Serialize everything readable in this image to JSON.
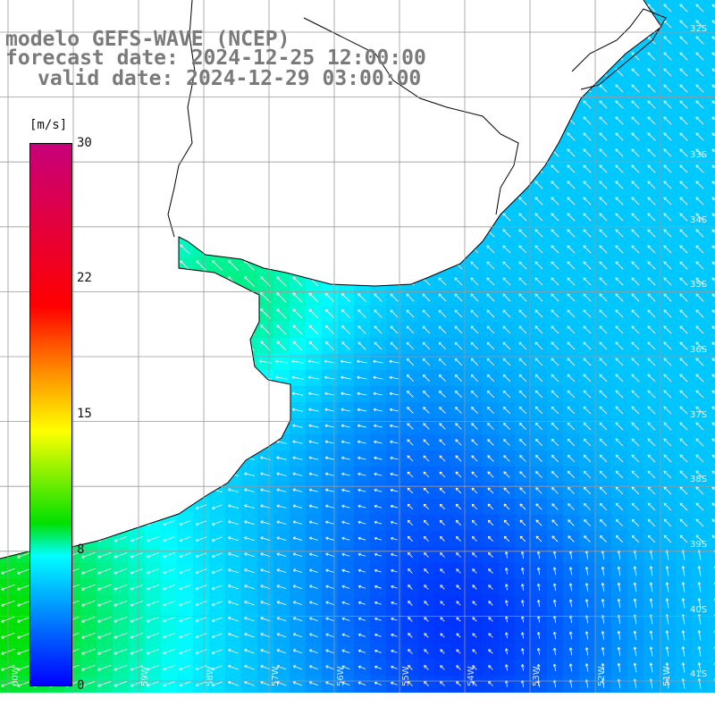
{
  "title": {
    "line1": "modelo GEFS-WAVE (NCEP)",
    "line2": "forecast date: 2024-12-25 12:00:00",
    "line3": "valid date: 2024-12-29 03:00:00"
  },
  "colorbar": {
    "unit": "[m/s]",
    "ticks": [
      "30",
      "22",
      "15",
      "8",
      "0"
    ],
    "tick_values": [
      30,
      22,
      15,
      8,
      0
    ],
    "min": 0,
    "max": 30,
    "colors": [
      "#0000ff",
      "#0066ff",
      "#00ffff",
      "#00e000",
      "#ffff00",
      "#ff8c00",
      "#ff0000",
      "#c8007a"
    ]
  },
  "axes": {
    "lat_labels": [
      "33S",
      "34S",
      "35S",
      "36S",
      "37S",
      "38S",
      "39S",
      "40S",
      "41S"
    ],
    "lon_labels": [
      "59W",
      "58W",
      "57W",
      "56W",
      "55W",
      "54W",
      "53W",
      "52W",
      "51W"
    ]
  },
  "map": {
    "region": "Rio de la Plata / South Atlantic",
    "land_color": "#ffffff",
    "coastline_color": "#000000",
    "grid_color": "#9a9a9a",
    "arrow_color": "#ffffff",
    "prevailing_flow": "from south-east toward north-west / west"
  }
}
